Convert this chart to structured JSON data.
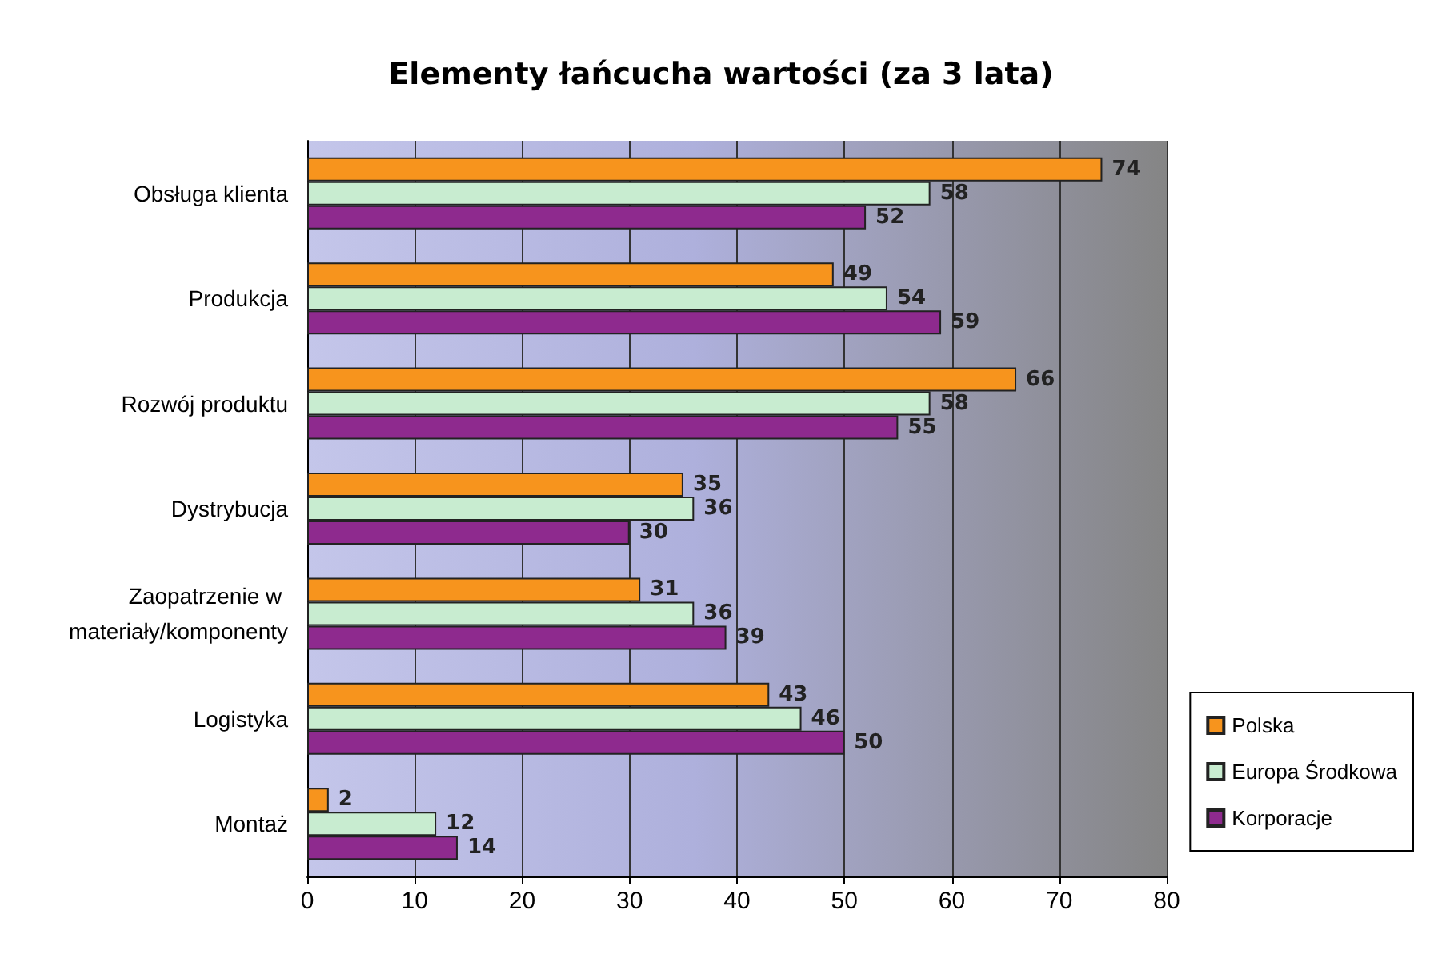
{
  "chart_data": {
    "type": "bar",
    "orientation": "horizontal",
    "title": "Elementy łańcucha wartości (za 3 lata)",
    "categories": [
      "Obsługa klienta",
      "Produkcja",
      "Rozwój produktu",
      "Dystrybucja",
      "Zaopatrzenie w materiały/komponenty",
      "Logistyka",
      "Montaż"
    ],
    "series": [
      {
        "name": "Polska",
        "color": "#f7941d",
        "values": [
          74,
          49,
          66,
          35,
          31,
          43,
          2
        ]
      },
      {
        "name": "Europa Środkowa",
        "color": "#c8ecd0",
        "values": [
          58,
          54,
          58,
          36,
          36,
          46,
          12
        ]
      },
      {
        "name": "Korporacje",
        "color": "#8e2a8e",
        "values": [
          52,
          59,
          55,
          30,
          39,
          50,
          14
        ]
      }
    ],
    "xlim": [
      0,
      80
    ],
    "xticks": [
      0,
      10,
      20,
      30,
      40,
      50,
      60,
      70,
      80
    ],
    "grid": "x",
    "legend": "right",
    "data_labels": true
  }
}
